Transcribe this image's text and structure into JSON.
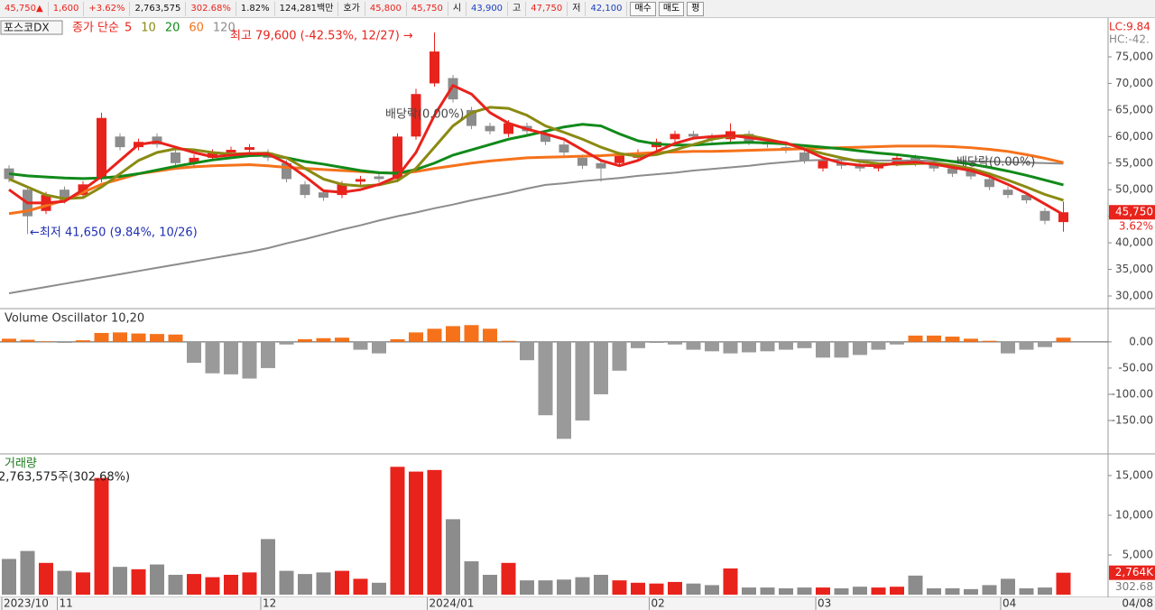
{
  "toolbar": {
    "items": [
      {
        "text": "45,750▲",
        "color": "#e8231c"
      },
      {
        "text": "1,600",
        "color": "#e8231c"
      },
      {
        "text": "+3.62%",
        "color": "#e8231c"
      },
      {
        "text": "2,763,575",
        "color": "#111111"
      },
      {
        "text": "302.68%",
        "color": "#e8231c"
      },
      {
        "text": "1.82%",
        "color": "#111111"
      },
      {
        "text": "124,281백만",
        "color": "#111111"
      },
      {
        "text": "호가",
        "color": "#111111"
      },
      {
        "text": "45,800",
        "color": "#e8231c"
      },
      {
        "text": "45,750",
        "color": "#e8231c"
      },
      {
        "text": "시",
        "color": "#111111"
      },
      {
        "text": "43,900",
        "color": "#1a3fc0"
      },
      {
        "text": "고",
        "color": "#111111"
      },
      {
        "text": "47,750",
        "color": "#e8231c"
      },
      {
        "text": "저",
        "color": "#111111"
      },
      {
        "text": "42,100",
        "color": "#1a3fc0"
      }
    ],
    "buttons": [
      "매수",
      "매도",
      "평"
    ]
  },
  "chart_data": [
    {
      "type": "candlestick",
      "title": "포스코DX",
      "legend_title": "종가 단순",
      "categories": [
        "2023/10",
        null,
        null,
        "11",
        null,
        null,
        null,
        null,
        null,
        null,
        null,
        null,
        null,
        null,
        "12",
        null,
        null,
        null,
        null,
        null,
        null,
        null,
        null,
        "2024/01",
        null,
        null,
        null,
        null,
        null,
        null,
        null,
        null,
        null,
        null,
        null,
        "02",
        null,
        null,
        null,
        null,
        null,
        null,
        null,
        null,
        "03",
        null,
        null,
        null,
        null,
        null,
        null,
        null,
        null,
        null,
        "04",
        null,
        null,
        null
      ],
      "date_label": "04/08",
      "open": [
        54000,
        50000,
        46000,
        50000,
        49000,
        52000,
        60000,
        58000,
        60000,
        57000,
        55000,
        56000,
        57000,
        57500,
        57000,
        55000,
        51000,
        49500,
        49000,
        51500,
        52500,
        52000,
        60000,
        70000,
        71000,
        65000,
        62000,
        60500,
        62000,
        60500,
        58500,
        56000,
        55000,
        55000,
        56000,
        58000,
        59500,
        60500,
        60000,
        59500,
        60500,
        59000,
        58000,
        57000,
        54000,
        55000,
        54500,
        54000,
        55000,
        56000,
        55000,
        54000,
        53500,
        52000,
        50000,
        49000,
        46000,
        43900
      ],
      "high": [
        54600,
        50600,
        49600,
        50600,
        51600,
        64500,
        60600,
        59600,
        60600,
        57600,
        56600,
        57600,
        58100,
        58600,
        57600,
        55600,
        51600,
        50100,
        51600,
        52600,
        53100,
        60600,
        69000,
        79600,
        71600,
        65600,
        62600,
        63100,
        62600,
        61100,
        59100,
        56600,
        55600,
        57100,
        57600,
        59600,
        61100,
        61100,
        60600,
        62500,
        61100,
        59600,
        58600,
        57600,
        56100,
        55600,
        55100,
        55100,
        56600,
        56600,
        55600,
        54600,
        54100,
        52600,
        50600,
        49600,
        46600,
        47750
      ],
      "low": [
        51400,
        41650,
        45400,
        47400,
        48400,
        51400,
        57400,
        57400,
        57900,
        54400,
        54400,
        55400,
        56400,
        56900,
        55400,
        51400,
        48400,
        47900,
        48400,
        50900,
        51400,
        51400,
        59400,
        69400,
        66400,
        61400,
        60400,
        59900,
        60400,
        58400,
        56400,
        53900,
        51500,
        54400,
        55400,
        57400,
        58900,
        59400,
        58900,
        58900,
        58400,
        57900,
        56900,
        54900,
        53400,
        53900,
        53400,
        53400,
        54400,
        54400,
        53400,
        52400,
        51900,
        49900,
        48400,
        47400,
        43500,
        42100
      ],
      "close": [
        52000,
        45000,
        49000,
        48000,
        51000,
        63500,
        58000,
        59000,
        58500,
        55000,
        56000,
        57000,
        57500,
        58000,
        56000,
        52000,
        49000,
        48500,
        51000,
        52000,
        52000,
        60000,
        68000,
        76000,
        67000,
        62000,
        61000,
        62500,
        61000,
        59000,
        57000,
        54500,
        54000,
        56500,
        57000,
        59000,
        60500,
        60000,
        59500,
        61000,
        59000,
        58500,
        57500,
        55500,
        55500,
        54500,
        54000,
        54500,
        56000,
        55000,
        54000,
        53000,
        52500,
        50500,
        49000,
        48000,
        44150,
        45750
      ],
      "up_color": "#e8231c",
      "down_color": "#8c8c8c",
      "moving_averages": [
        {
          "name": "5",
          "color": "#e8231c",
          "values": [
            50000,
            47500,
            47500,
            47800,
            50000,
            52500,
            55500,
            58500,
            59000,
            58000,
            57000,
            56200,
            56500,
            56800,
            56700,
            55000,
            52500,
            49800,
            49500,
            50000,
            51000,
            52500,
            57000,
            64000,
            69600,
            68000,
            64500,
            62500,
            61400,
            60500,
            59500,
            57500,
            55500,
            54500,
            55500,
            57200,
            58700,
            59700,
            60000,
            60200,
            59800,
            59300,
            58800,
            57600,
            56000,
            55000,
            54600,
            54500,
            55000,
            55200,
            54800,
            54200,
            53600,
            52500,
            51000,
            49300,
            47300,
            45300
          ]
        },
        {
          "name": "10",
          "color": "#8a8a12",
          "values": [
            52000,
            50500,
            49000,
            48300,
            48500,
            50500,
            53000,
            55500,
            57000,
            57700,
            57500,
            57000,
            56700,
            56800,
            56900,
            56000,
            54000,
            52000,
            51000,
            50700,
            50900,
            51700,
            54000,
            58000,
            62000,
            64500,
            65500,
            65300,
            64000,
            62000,
            60800,
            59500,
            58000,
            56800,
            56300,
            56600,
            57500,
            58500,
            59500,
            60100,
            60200,
            59500,
            58700,
            57700,
            56800,
            56000,
            55300,
            54900,
            54800,
            54900,
            55000,
            54600,
            54000,
            53000,
            51800,
            50500,
            49100,
            48000
          ]
        },
        {
          "name": "20",
          "color": "#118a1a",
          "values": [
            53000,
            52600,
            52400,
            52200,
            52100,
            52200,
            52500,
            53000,
            53700,
            54400,
            55000,
            55600,
            56000,
            56400,
            56500,
            56000,
            55300,
            54800,
            54200,
            53600,
            53200,
            53100,
            53800,
            55000,
            56500,
            57500,
            58500,
            59500,
            60200,
            61000,
            61800,
            62300,
            62000,
            60500,
            59200,
            58600,
            58400,
            58400,
            58600,
            58800,
            58900,
            58800,
            58600,
            58300,
            58000,
            57700,
            57300,
            56900,
            56600,
            56200,
            55800,
            55300,
            54800,
            54200,
            53500,
            52700,
            51800,
            50900
          ]
        },
        {
          "name": "60",
          "color": "#f5721b",
          "values": [
            45500,
            46000,
            47000,
            48000,
            49500,
            51000,
            52000,
            53000,
            53500,
            54000,
            54300,
            54500,
            54600,
            54700,
            54500,
            54200,
            54000,
            53800,
            53600,
            53400,
            53200,
            53100,
            53400,
            54000,
            54500,
            55000,
            55400,
            55700,
            56000,
            56100,
            56200,
            56300,
            56400,
            56600,
            56800,
            57000,
            57100,
            57200,
            57200,
            57300,
            57400,
            57500,
            57600,
            57700,
            57800,
            57900,
            58000,
            58100,
            58200,
            58200,
            58200,
            58100,
            57900,
            57600,
            57200,
            56600,
            55900,
            55100
          ]
        },
        {
          "name": "120",
          "color": "#8c8c8c",
          "values": [
            30500,
            31100,
            31700,
            32300,
            32900,
            33500,
            34100,
            34700,
            35300,
            35900,
            36500,
            37100,
            37700,
            38300,
            39000,
            39900,
            40700,
            41600,
            42500,
            43300,
            44200,
            45000,
            45700,
            46500,
            47200,
            48000,
            48700,
            49400,
            50200,
            50900,
            51200,
            51600,
            51900,
            52200,
            52600,
            52900,
            53200,
            53600,
            53900,
            54200,
            54500,
            54900,
            55200,
            55500,
            55600,
            55600,
            55600,
            55500,
            55500,
            55500,
            55400,
            55400,
            55300,
            55300,
            55200,
            55100,
            55000,
            54900
          ]
        }
      ],
      "ylim": [
        27960,
        81960
      ],
      "yticks": [
        {
          "value": 30000,
          "label": "30,000"
        },
        {
          "value": 35000,
          "label": "35,000"
        },
        {
          "value": 40000,
          "label": "40,000"
        },
        {
          "value": 45000,
          "label": "45,000"
        },
        {
          "value": 50000,
          "label": "50,000"
        },
        {
          "value": 55000,
          "label": "55,000"
        },
        {
          "value": 60000,
          "label": "60,000"
        },
        {
          "value": 65000,
          "label": "65,000"
        },
        {
          "value": 70000,
          "label": "70,000"
        },
        {
          "value": 75000,
          "label": "75,000"
        }
      ],
      "annotations": [
        "최고 79,600 (-42.53%, 12/27) →",
        "←최저 41,650 (9.84%, 10/26)",
        "배당락(0.00%)",
        "배당락(0.00%)"
      ],
      "corner_labels": [
        "LC:9.84",
        "HC:-42."
      ],
      "last_label": "45,750",
      "change_label": "3.62%"
    },
    {
      "type": "bar",
      "title": "Volume Oscillator 10,20",
      "values": [
        6,
        4,
        1,
        -2,
        3,
        17,
        18,
        16,
        15,
        14,
        -40,
        -60,
        -62,
        -70,
        -50,
        -5,
        5,
        7,
        8,
        -15,
        -22,
        5,
        18,
        25,
        30,
        32,
        25,
        2,
        -35,
        -140,
        -185,
        -150,
        -100,
        -55,
        -12,
        -2,
        -5,
        -15,
        -18,
        -22,
        -20,
        -18,
        -15,
        -12,
        -30,
        -30,
        -25,
        -15,
        -5,
        12,
        12,
        10,
        6,
        2,
        -22,
        -15,
        -10,
        8
      ],
      "color": "#f5721b",
      "negative_color": "#9a9a9a",
      "ylim": [
        -212,
        60
      ],
      "yticks": [
        {
          "value": -150,
          "label": "-150.00"
        },
        {
          "value": -100,
          "label": "-100.00"
        },
        {
          "value": -50,
          "label": "-50.00"
        },
        {
          "value": 0,
          "label": "0.00"
        }
      ]
    },
    {
      "type": "bar",
      "title": "거래량",
      "subtitle": "2,763,575주(302.68%)",
      "values": [
        4500,
        5500,
        4000,
        3000,
        2800,
        14700,
        3500,
        3200,
        3800,
        2500,
        2600,
        2200,
        2500,
        2800,
        7000,
        3000,
        2600,
        2800,
        3000,
        2000,
        1500,
        16100,
        15500,
        15700,
        9500,
        4200,
        2500,
        4000,
        1800,
        1800,
        1900,
        2200,
        2500,
        1800,
        1500,
        1400,
        1600,
        1400,
        1200,
        3300,
        900,
        900,
        800,
        900,
        900,
        800,
        1000,
        900,
        1000,
        2400,
        800,
        800,
        700,
        1200,
        2000,
        800,
        900,
        2764
      ],
      "color": "#e8231c",
      "down_color": "#8c8c8c",
      "ylim": [
        0,
        17500
      ],
      "yticks": [
        {
          "value": 5000,
          "label": "5,000"
        },
        {
          "value": 10000,
          "label": "10,000"
        },
        {
          "value": 15000,
          "label": "15,000"
        }
      ],
      "last_label": "2,764K",
      "change_label": "302.68"
    }
  ]
}
